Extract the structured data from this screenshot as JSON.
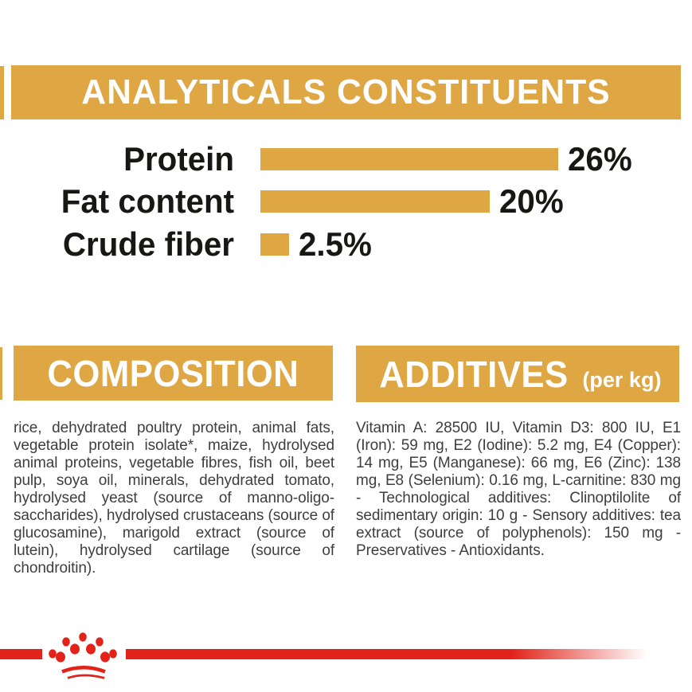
{
  "colors": {
    "gold": "#DFA644",
    "red": "#E2231A",
    "heading_text": "#FFFFFF",
    "label_text": "#171714",
    "body_text": "#3E3E3C"
  },
  "analyticals": {
    "title": "ANALYTICALS CONSTITUENTS",
    "rows": [
      {
        "label": "Protein",
        "value": "26%",
        "percent": 26
      },
      {
        "label": "Fat content",
        "value": "20%",
        "percent": 20
      },
      {
        "label": "Crude fiber",
        "value": "2.5%",
        "percent": 2.5
      }
    ]
  },
  "chart_data": {
    "type": "bar",
    "orientation": "horizontal",
    "title": "ANALYTICALS CONSTITUENTS",
    "categories": [
      "Protein",
      "Fat content",
      "Crude fiber"
    ],
    "values": [
      26,
      20,
      2.5
    ],
    "value_labels": [
      "26%",
      "20%",
      "2.5%"
    ],
    "xlabel": "",
    "ylabel": "",
    "xlim": [
      0,
      37
    ],
    "grid": false,
    "legend": false,
    "bar_color": "#DFA644"
  },
  "composition": {
    "title": "COMPOSITION",
    "text": "rice, dehydrated poultry protein, animal fats, vegetable protein isolate*, maize, hydrolysed animal proteins, vegetable fibres, fish oil, beet pulp, soya oil, minerals, dehydrated tomato, hydrolysed yeast (source of manno-oligo-saccharides), hydrolysed crustaceans (source of glucosamine), marigold extract (source of lutein), hydrolysed cartilage (source of chondroitin)."
  },
  "additives": {
    "title": "ADDITIVES",
    "unit": "(per kg)",
    "text": "Vitamin A: 28500 IU, Vitamin D3: 800 IU, E1 (Iron): 59 mg, E2 (Iodine): 5.2 mg, E4 (Copper): 14 mg, E5 (Manganese): 66 mg, E6 (Zinc): 138 mg, E8 (Selenium): 0.16 mg, L-carnitine: 830 mg - Technological additives: Clinoptilolite of sedimentary origin: 10 g - Sensory additives: tea extract (source of polyphenols): 150 mg - Preservatives - Antioxidants.",
    "icon": "royal-canin-crown-logo"
  }
}
